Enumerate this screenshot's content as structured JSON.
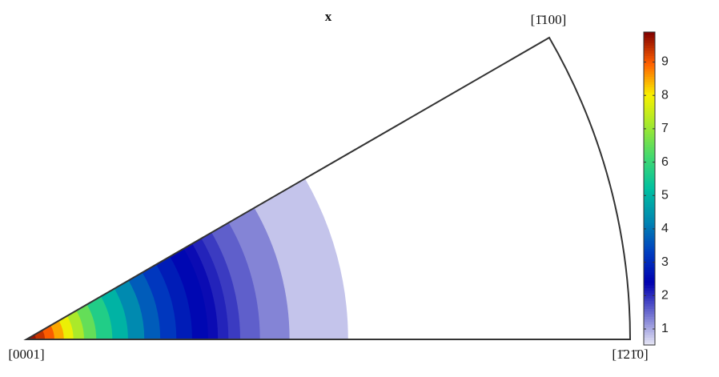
{
  "chart_data": {
    "type": "ipf-contour",
    "title": "x",
    "vertex_labels": {
      "origin": "[0001]",
      "right": "[1̄21̄0]",
      "top": "[1̄100]"
    },
    "sector_angle": 30,
    "max_polar_angle": 90,
    "contours": [
      {
        "polar_angle": 56.1,
        "value": 0.8
      },
      {
        "polar_angle": 47.1,
        "value": 1.3
      },
      {
        "polar_angle": 42.3,
        "value": 1.6
      },
      {
        "polar_angle": 39.0,
        "value": 1.9
      },
      {
        "polar_angle": 37.0,
        "value": 2.1
      },
      {
        "polar_angle": 35.2,
        "value": 2.3
      },
      {
        "polar_angle": 33.5,
        "value": 2.5
      },
      {
        "polar_angle": 30.7,
        "value": 2.8
      },
      {
        "polar_angle": 27.9,
        "value": 3.2
      },
      {
        "polar_angle": 25.0,
        "value": 3.7
      },
      {
        "polar_angle": 22.1,
        "value": 4.3
      },
      {
        "polar_angle": 19.1,
        "value": 5
      },
      {
        "polar_angle": 16.2,
        "value": 5.7
      },
      {
        "polar_angle": 13.2,
        "value": 6.5
      },
      {
        "polar_angle": 10.9,
        "value": 7.2
      },
      {
        "polar_angle": 8.9,
        "value": 7.9
      },
      {
        "polar_angle": 7.1,
        "value": 8.5
      },
      {
        "polar_angle": 5.3,
        "value": 9
      },
      {
        "polar_angle": 3.5,
        "value": 9.4
      },
      {
        "polar_angle": 1.8,
        "value": 9.7
      }
    ],
    "clim": [
      0.52,
      9.9
    ],
    "cticks": [
      1,
      2,
      3,
      4,
      5,
      6,
      7,
      8,
      9
    ],
    "colormap": [
      "#e8e8f6",
      "#7070d0",
      "#0000b0",
      "#0040c0",
      "#0088b0",
      "#00c0a0",
      "#40d870",
      "#a0e830",
      "#f8f000",
      "#ff6000",
      "#800000"
    ],
    "outline_color": "#333333"
  }
}
